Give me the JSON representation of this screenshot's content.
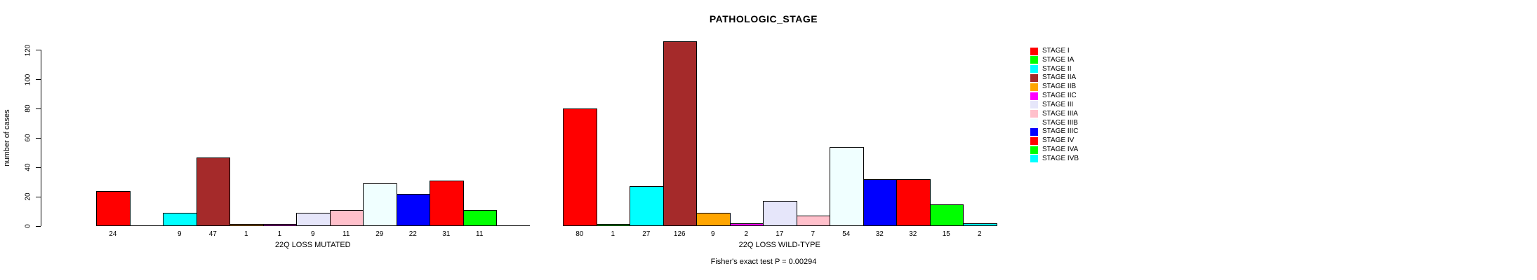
{
  "header": {
    "title": "PATHOLOGIC_STAGE"
  },
  "footer": {
    "text": "Fisher's exact test P = 0.00294"
  },
  "chart_data": {
    "type": "bar",
    "title": "PATHOLOGIC_STAGE",
    "xlabel": "",
    "ylabel": "number of cases",
    "ylim": [
      0,
      120
    ],
    "yticks": [
      0,
      20,
      40,
      60,
      80,
      100,
      120
    ],
    "grid": false,
    "legend_position": "right",
    "annotation": "Fisher's exact test P = 0.00294",
    "categories": [
      "STAGE I",
      "STAGE IA",
      "STAGE II",
      "STAGE IIA",
      "STAGE IIB",
      "STAGE IIC",
      "STAGE III",
      "STAGE IIIA",
      "STAGE IIIB",
      "STAGE IIIC",
      "STAGE IV",
      "STAGE IVA",
      "STAGE IVB"
    ],
    "colors": [
      "#FF0000",
      "#00FF00",
      "#00FFFF",
      "#A52A2A",
      "#FFA500",
      "#FF00FF",
      "#E6E6FA",
      "#FFC0CB",
      "#F0FFFF",
      "#0000FF",
      "#FF0000",
      "#00FF00",
      "#00FFFF"
    ],
    "groups": [
      {
        "label": "22Q LOSS MUTATED",
        "values": [
          24,
          null,
          9,
          47,
          1,
          1,
          9,
          11,
          29,
          22,
          31,
          11,
          null
        ]
      },
      {
        "label": "22Q LOSS WILD-TYPE",
        "values": [
          80,
          1,
          27,
          126,
          9,
          2,
          17,
          7,
          54,
          32,
          32,
          15,
          2
        ]
      }
    ]
  }
}
